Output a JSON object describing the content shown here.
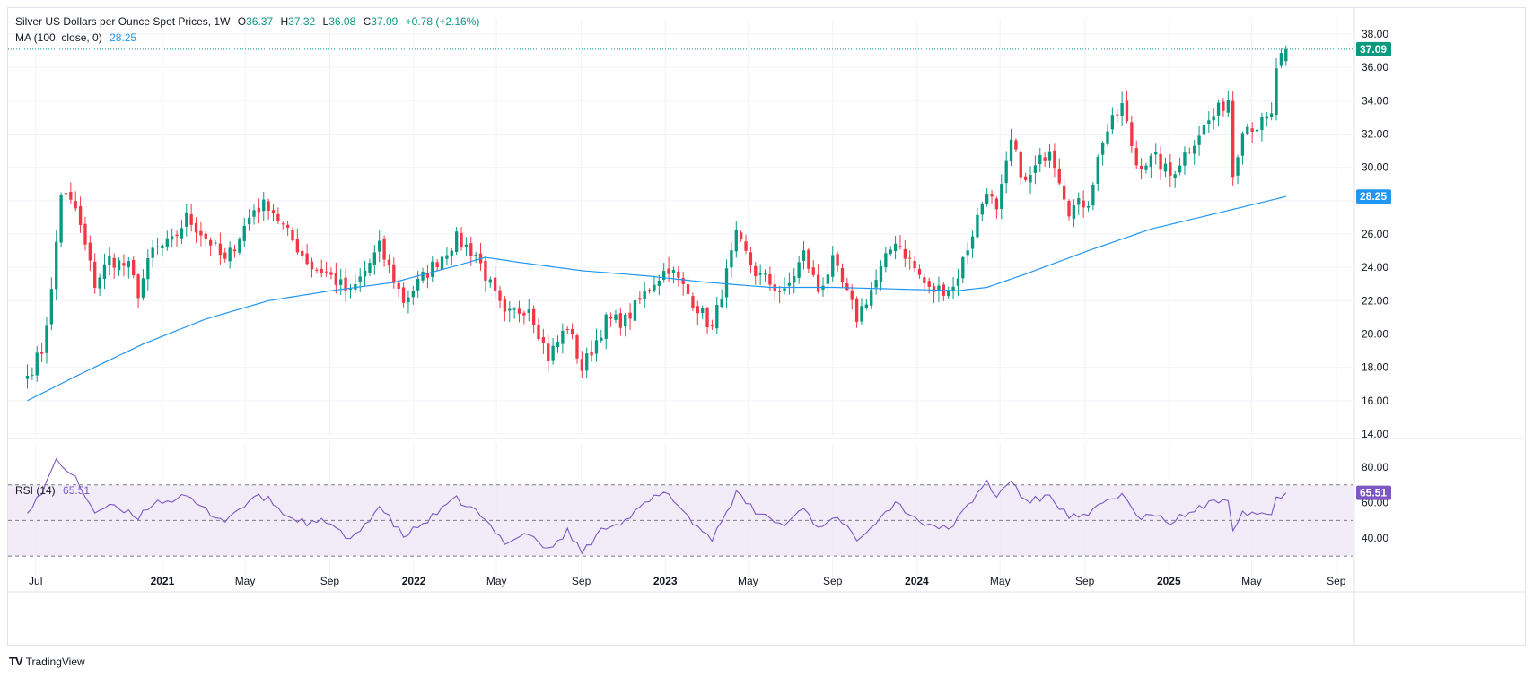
{
  "legend": {
    "title": "Silver US Dollars per Ounce Spot Prices, 1W",
    "o_label": "O",
    "o_value": "36.37",
    "h_label": "H",
    "h_value": "37.32",
    "l_label": "L",
    "l_value": "36.08",
    "c_label": "C",
    "c_value": "37.09",
    "change": "+0.78 (+2.16%)",
    "ma_label": "MA (100, close, 0)",
    "ma_value": "28.25",
    "rsi_label": "RSI (14)",
    "rsi_value": "65.51"
  },
  "badges": {
    "last_price": "37.09",
    "ma_value": "28.25",
    "rsi_value": "65.51"
  },
  "brand": "TradingView",
  "colors": {
    "up": "#089981",
    "down": "#f23645",
    "ma": "#2196f3",
    "rsi": "#7e57c2",
    "rsi_band": "#ede7f6",
    "grid": "#f0f3fa"
  },
  "chart_data": [
    {
      "type": "candlestick",
      "title": "Silver US Dollars per Ounce Spot Prices, 1W",
      "timeframe": "1W",
      "last": {
        "open": 36.37,
        "high": 37.32,
        "low": 36.08,
        "close": 37.09
      },
      "ylim": [
        14,
        38
      ],
      "y_ticks": [
        "14.00",
        "16.00",
        "18.00",
        "20.00",
        "22.00",
        "24.00",
        "26.00",
        "28.00",
        "30.00",
        "32.00",
        "34.00",
        "36.00",
        "38.00"
      ],
      "x_ticks": [
        {
          "label": "Jul",
          "bold": false
        },
        {
          "label": "2021",
          "bold": true
        },
        {
          "label": "May",
          "bold": false
        },
        {
          "label": "Sep",
          "bold": false
        },
        {
          "label": "2022",
          "bold": true
        },
        {
          "label": "May",
          "bold": false
        },
        {
          "label": "Sep",
          "bold": false
        },
        {
          "label": "2023",
          "bold": true
        },
        {
          "label": "May",
          "bold": false
        },
        {
          "label": "Sep",
          "bold": false
        },
        {
          "label": "2024",
          "bold": true
        },
        {
          "label": "May",
          "bold": false
        },
        {
          "label": "Sep",
          "bold": false
        },
        {
          "label": "2025",
          "bold": true
        },
        {
          "label": "May",
          "bold": false
        },
        {
          "label": "Sep",
          "bold": false
        }
      ],
      "close_keypoints": [
        [
          "2020-06-19",
          17.5
        ],
        [
          "2020-07-10",
          19.0
        ],
        [
          "2020-07-24",
          22.5
        ],
        [
          "2020-08-07",
          28.5
        ],
        [
          "2020-08-28",
          27.5
        ],
        [
          "2020-09-25",
          23.0
        ],
        [
          "2020-10-16",
          24.5
        ],
        [
          "2020-11-13",
          24.0
        ],
        [
          "2020-11-27",
          22.5
        ],
        [
          "2020-12-18",
          25.0
        ],
        [
          "2021-01-15",
          25.5
        ],
        [
          "2021-02-05",
          27.0
        ],
        [
          "2021-03-12",
          25.5
        ],
        [
          "2021-04-02",
          24.3
        ],
        [
          "2021-05-14",
          27.5
        ],
        [
          "2021-06-04",
          27.8
        ],
        [
          "2021-07-02",
          26.0
        ],
        [
          "2021-08-06",
          24.0
        ],
        [
          "2021-08-27",
          23.7
        ],
        [
          "2021-10-01",
          22.4
        ],
        [
          "2021-11-12",
          25.2
        ],
        [
          "2021-12-17",
          22.0
        ],
        [
          "2022-01-14",
          23.4
        ],
        [
          "2022-03-04",
          25.7
        ],
        [
          "2022-04-01",
          24.8
        ],
        [
          "2022-05-13",
          21.0
        ],
        [
          "2022-06-17",
          21.7
        ],
        [
          "2022-07-15",
          18.6
        ],
        [
          "2022-08-12",
          20.5
        ],
        [
          "2022-09-02",
          17.9
        ],
        [
          "2022-10-07",
          20.8
        ],
        [
          "2022-11-04",
          20.8
        ],
        [
          "2022-12-16",
          23.2
        ],
        [
          "2023-01-06",
          24.0
        ],
        [
          "2023-02-17",
          21.6
        ],
        [
          "2023-03-10",
          20.3
        ],
        [
          "2023-04-14",
          25.8
        ],
        [
          "2023-05-12",
          23.7
        ],
        [
          "2023-06-23",
          22.4
        ],
        [
          "2023-07-21",
          24.8
        ],
        [
          "2023-08-11",
          22.6
        ],
        [
          "2023-09-01",
          24.3
        ],
        [
          "2023-10-06",
          21.0
        ],
        [
          "2023-11-03",
          23.2
        ],
        [
          "2023-12-01",
          25.7
        ],
        [
          "2024-01-19",
          22.6
        ],
        [
          "2024-02-23",
          22.8
        ],
        [
          "2024-03-15",
          25.2
        ],
        [
          "2024-04-12",
          28.8
        ],
        [
          "2024-04-26",
          27.2
        ],
        [
          "2024-05-17",
          31.5
        ],
        [
          "2024-06-07",
          29.0
        ],
        [
          "2024-07-12",
          31.3
        ],
        [
          "2024-08-09",
          27.5
        ],
        [
          "2024-09-06",
          28.0
        ],
        [
          "2024-09-27",
          31.7
        ],
        [
          "2024-10-25",
          33.7
        ],
        [
          "2024-11-15",
          30.2
        ],
        [
          "2024-12-13",
          30.5
        ],
        [
          "2025-01-03",
          29.5
        ],
        [
          "2025-02-14",
          32.1
        ],
        [
          "2025-03-28",
          34.1
        ],
        [
          "2025-04-04",
          29.6
        ],
        [
          "2025-04-18",
          32.5
        ],
        [
          "2025-05-09",
          32.5
        ],
        [
          "2025-05-30",
          33.0
        ],
        [
          "2025-06-06",
          36.0
        ],
        [
          "2025-06-20",
          37.09
        ]
      ],
      "ma_100_keypoints": [
        [
          "2020-06-19",
          16.0
        ],
        [
          "2020-09-04",
          17.6
        ],
        [
          "2020-12-04",
          19.4
        ],
        [
          "2021-03-05",
          20.9
        ],
        [
          "2021-06-04",
          22.0
        ],
        [
          "2021-09-03",
          22.6
        ],
        [
          "2021-12-03",
          23.1
        ],
        [
          "2022-03-04",
          24.1
        ],
        [
          "2022-04-15",
          24.6
        ],
        [
          "2022-06-03",
          24.3
        ],
        [
          "2022-09-02",
          23.8
        ],
        [
          "2022-12-02",
          23.5
        ],
        [
          "2023-03-03",
          23.1
        ],
        [
          "2023-06-02",
          22.8
        ],
        [
          "2023-09-01",
          22.8
        ],
        [
          "2023-12-01",
          22.7
        ],
        [
          "2024-03-01",
          22.6
        ],
        [
          "2024-04-12",
          22.8
        ],
        [
          "2024-06-07",
          23.6
        ],
        [
          "2024-09-06",
          25.0
        ],
        [
          "2024-12-06",
          26.3
        ],
        [
          "2025-03-07",
          27.2
        ],
        [
          "2025-06-20",
          28.25
        ]
      ]
    },
    {
      "type": "line",
      "title": "RSI (14)",
      "ylim": [
        26,
        88
      ],
      "y_ticks": [
        "40.00",
        "60.00",
        "80.00"
      ],
      "bands": [
        30,
        50,
        70
      ],
      "keypoints": [
        [
          "2020-06-19",
          56
        ],
        [
          "2020-07-10",
          65
        ],
        [
          "2020-07-31",
          84
        ],
        [
          "2020-08-07",
          82
        ],
        [
          "2020-08-28",
          73
        ],
        [
          "2020-09-25",
          55
        ],
        [
          "2020-10-16",
          58
        ],
        [
          "2020-11-27",
          52
        ],
        [
          "2020-12-18",
          60
        ],
        [
          "2021-02-05",
          63
        ],
        [
          "2021-03-12",
          54
        ],
        [
          "2021-04-02",
          50
        ],
        [
          "2021-05-14",
          63
        ],
        [
          "2021-06-04",
          62
        ],
        [
          "2021-07-02",
          52
        ],
        [
          "2021-08-06",
          48
        ],
        [
          "2021-08-27",
          50
        ],
        [
          "2021-10-01",
          38
        ],
        [
          "2021-11-12",
          58
        ],
        [
          "2021-12-17",
          41
        ],
        [
          "2022-01-14",
          48
        ],
        [
          "2022-03-04",
          62
        ],
        [
          "2022-04-01",
          55
        ],
        [
          "2022-05-13",
          38
        ],
        [
          "2022-06-17",
          43
        ],
        [
          "2022-07-15",
          33
        ],
        [
          "2022-08-12",
          44
        ],
        [
          "2022-09-02",
          32
        ],
        [
          "2022-10-07",
          47
        ],
        [
          "2022-11-04",
          50
        ],
        [
          "2022-12-16",
          63
        ],
        [
          "2023-01-06",
          65
        ],
        [
          "2023-02-17",
          46
        ],
        [
          "2023-03-10",
          40
        ],
        [
          "2023-04-14",
          65
        ],
        [
          "2023-05-12",
          55
        ],
        [
          "2023-06-23",
          47
        ],
        [
          "2023-07-21",
          58
        ],
        [
          "2023-08-11",
          45
        ],
        [
          "2023-09-01",
          53
        ],
        [
          "2023-10-06",
          40
        ],
        [
          "2023-11-03",
          50
        ],
        [
          "2023-12-01",
          60
        ],
        [
          "2024-01-19",
          46
        ],
        [
          "2024-02-23",
          47
        ],
        [
          "2024-03-15",
          58
        ],
        [
          "2024-04-12",
          72
        ],
        [
          "2024-04-26",
          63
        ],
        [
          "2024-05-17",
          73
        ],
        [
          "2024-06-07",
          60
        ],
        [
          "2024-07-12",
          64
        ],
        [
          "2024-08-09",
          52
        ],
        [
          "2024-09-06",
          52
        ],
        [
          "2024-09-27",
          60
        ],
        [
          "2024-10-25",
          65
        ],
        [
          "2024-11-15",
          52
        ],
        [
          "2024-12-13",
          52
        ],
        [
          "2025-01-03",
          49
        ],
        [
          "2025-02-14",
          57
        ],
        [
          "2025-03-28",
          63
        ],
        [
          "2025-04-04",
          46
        ],
        [
          "2025-04-18",
          55
        ],
        [
          "2025-05-09",
          54
        ],
        [
          "2025-05-30",
          54
        ],
        [
          "2025-06-06",
          62
        ],
        [
          "2025-06-20",
          65.51
        ]
      ]
    }
  ]
}
